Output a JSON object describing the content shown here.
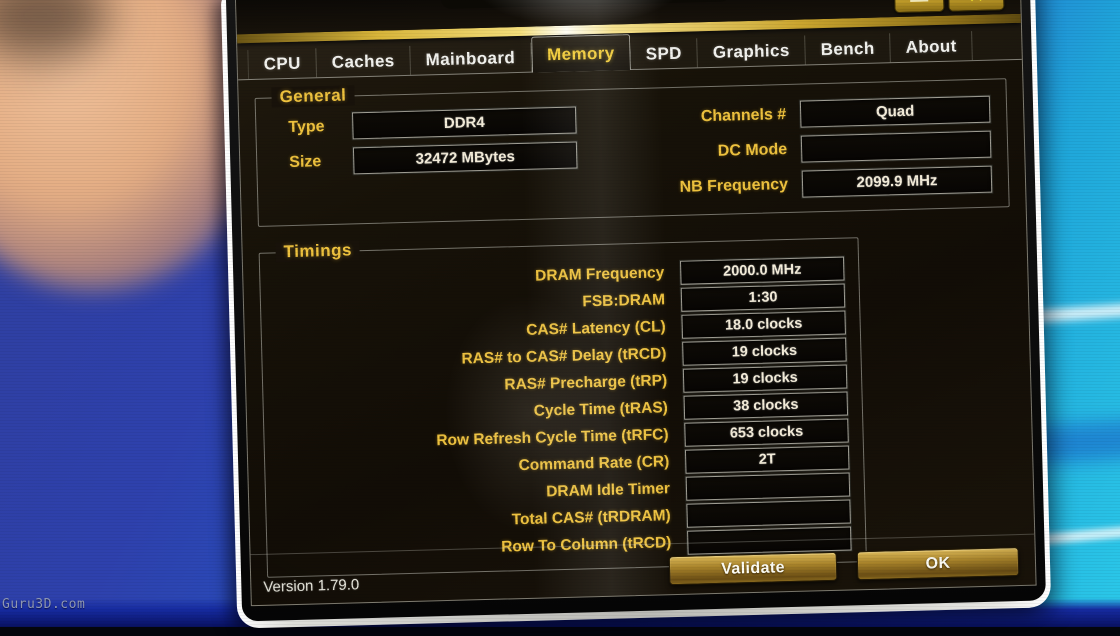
{
  "titlebar": {
    "minimize_glyph": "—",
    "close_glyph": "✕"
  },
  "tabs": {
    "items": [
      "CPU",
      "Caches",
      "Mainboard",
      "Memory",
      "SPD",
      "Graphics",
      "Bench",
      "About"
    ],
    "active": "Memory"
  },
  "general": {
    "legend": "General",
    "fields": [
      {
        "label": "Type",
        "value": "DDR4"
      },
      {
        "label": "Size",
        "value": "32472 MBytes"
      },
      {
        "label": "Channels #",
        "value": "Quad"
      },
      {
        "label": "DC Mode",
        "value": ""
      },
      {
        "label": "NB Frequency",
        "value": "2099.9 MHz"
      }
    ]
  },
  "timings": {
    "legend": "Timings",
    "rows": [
      {
        "label": "DRAM Frequency",
        "value": "2000.0 MHz"
      },
      {
        "label": "FSB:DRAM",
        "value": "1:30"
      },
      {
        "label": "CAS# Latency (CL)",
        "value": "18.0 clocks"
      },
      {
        "label": "RAS# to CAS# Delay (tRCD)",
        "value": "19 clocks"
      },
      {
        "label": "RAS# Precharge (tRP)",
        "value": "19 clocks"
      },
      {
        "label": "Cycle Time (tRAS)",
        "value": "38 clocks"
      },
      {
        "label": "Row Refresh Cycle Time (tRFC)",
        "value": "653 clocks"
      },
      {
        "label": "Command Rate (CR)",
        "value": "2T"
      },
      {
        "label": "DRAM Idle Timer",
        "value": ""
      },
      {
        "label": "Total CAS# (tRDRAM)",
        "value": ""
      },
      {
        "label": "Row To Column (tRCD)",
        "value": ""
      }
    ]
  },
  "footer": {
    "version": "Version 1.79.0",
    "validate_label": "Validate",
    "ok_label": "OK"
  },
  "watermark": "Guru3D.com",
  "colors": {
    "accent_gold": "#eec23e",
    "active_tab": "#f2cd3a",
    "value_text": "#f4edda",
    "button_face": "#a8832a",
    "desktop_blue": "#2e41ad",
    "desktop_cyan": "#2bc9e9"
  }
}
